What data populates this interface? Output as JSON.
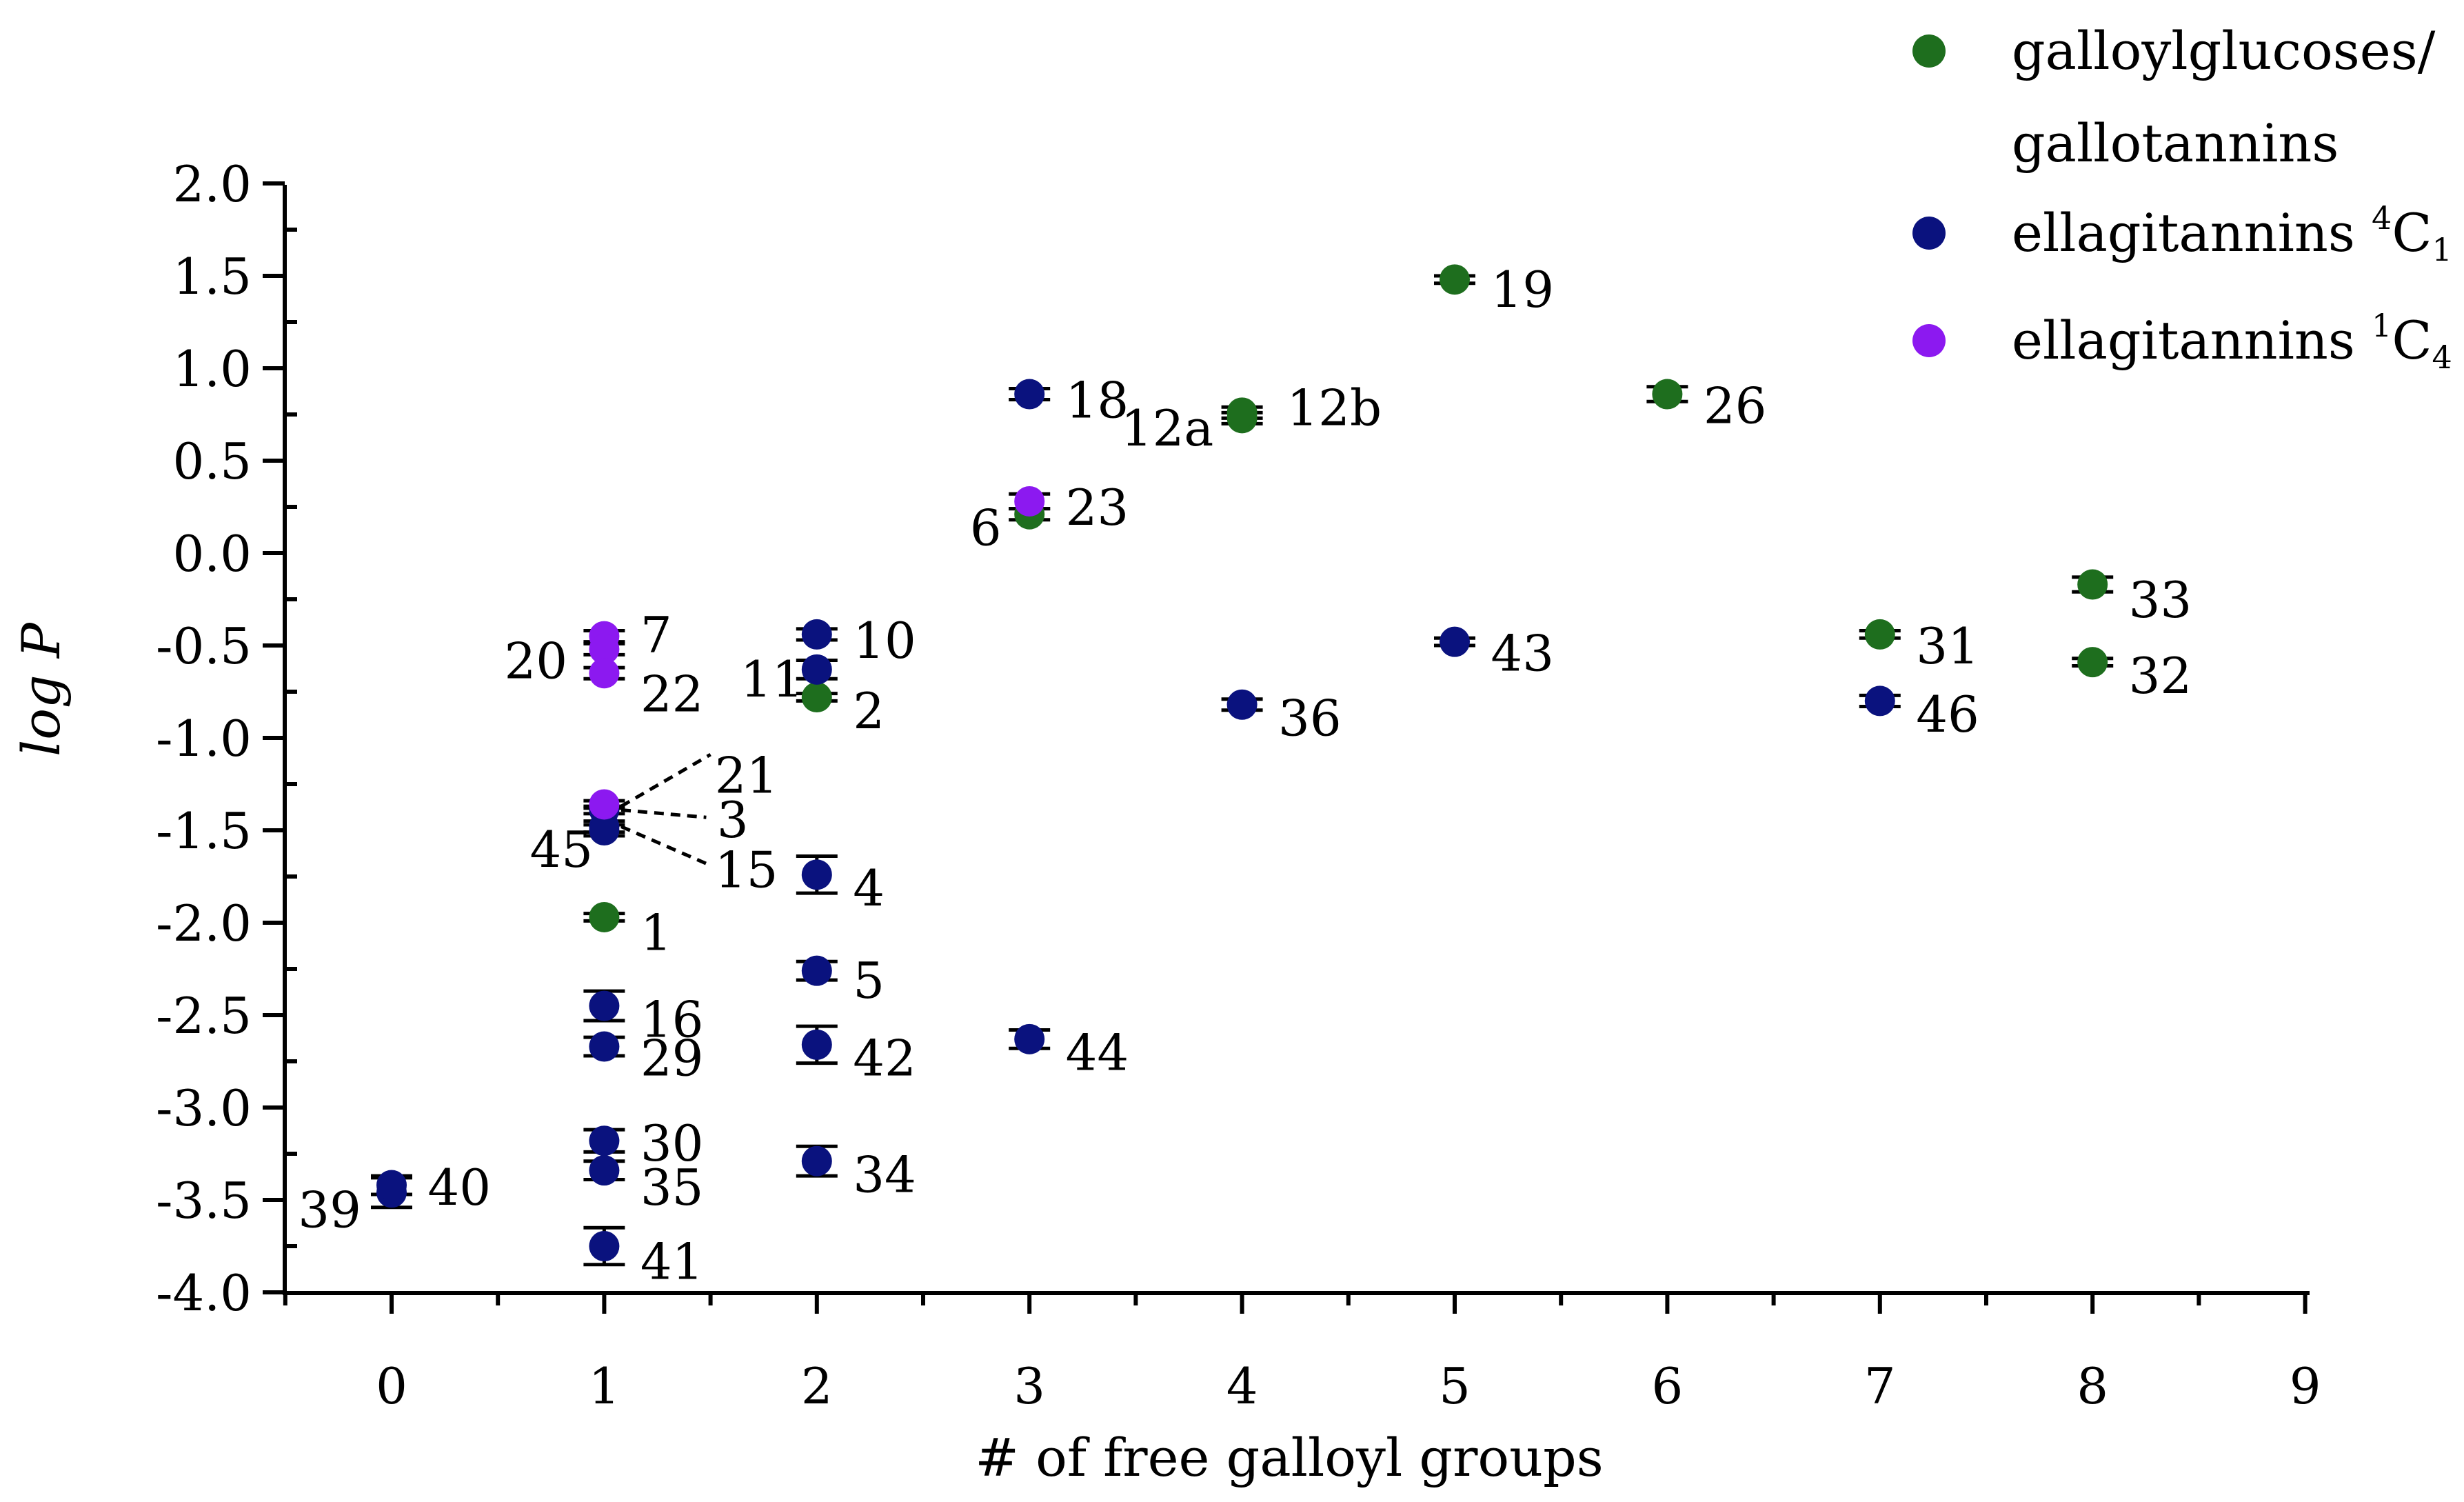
{
  "chart_data": {
    "type": "scatter",
    "title": "",
    "xlabel": "# of free galloyl groups",
    "ylabel": "log P",
    "xlim": [
      -0.5,
      9
    ],
    "ylim": [
      -4.0,
      2.0
    ],
    "x_ticks": [
      "0",
      "1",
      "2",
      "3",
      "4",
      "5",
      "6",
      "7",
      "8",
      "9"
    ],
    "y_ticks": [
      "2.0",
      "1.5",
      "1.0",
      "0.5",
      "0.0",
      "-0.5",
      "-1.0",
      "-1.5",
      "-2.0",
      "-2.5",
      "-3.0",
      "-3.5",
      "-4.0"
    ],
    "legend": {
      "position": "top-right",
      "entries": [
        {
          "series": "galloyl",
          "line1": "galloylglucoses/",
          "line2": "gallotannins"
        },
        {
          "series": "et4c1",
          "text": "ellagitannins ",
          "sup": "4",
          "main": "C",
          "sub": "1"
        },
        {
          "series": "et1c4",
          "text": "ellagitannins ",
          "sup": "1",
          "main": "C",
          "sub": "4"
        }
      ]
    },
    "series": [
      {
        "key": "galloyl",
        "name": "galloylglucoses/gallotannins",
        "color": "#1e6e1e",
        "points": [
          {
            "id": "1",
            "x": 1,
            "y": -1.97,
            "err": 0.02
          },
          {
            "id": "2",
            "x": 2,
            "y": -0.78,
            "err": 0.02
          },
          {
            "id": "6",
            "x": 3,
            "y": 0.21,
            "err": 0.03
          },
          {
            "id": "12a",
            "x": 4,
            "y": 0.73,
            "err": 0.03
          },
          {
            "id": "12b",
            "x": 4,
            "y": 0.76,
            "err": 0.03
          },
          {
            "id": "19",
            "x": 5,
            "y": 1.48,
            "err": 0.02
          },
          {
            "id": "26",
            "x": 6,
            "y": 0.86,
            "err": 0.04
          },
          {
            "id": "31",
            "x": 7,
            "y": -0.44,
            "err": 0.02
          },
          {
            "id": "32",
            "x": 8,
            "y": -0.59,
            "err": 0.02
          },
          {
            "id": "33",
            "x": 8,
            "y": -0.17,
            "err": 0.04
          }
        ]
      },
      {
        "key": "et4c1",
        "name": "ellagitannins 4C1",
        "color": "#0a127e",
        "points": [
          {
            "id": "3",
            "x": 1,
            "y": -1.39,
            "err": 0.02
          },
          {
            "id": "4",
            "x": 2,
            "y": -1.74,
            "err": 0.1
          },
          {
            "id": "5",
            "x": 2,
            "y": -2.26,
            "err": 0.05
          },
          {
            "id": "10",
            "x": 2,
            "y": -0.44,
            "err": 0.03
          },
          {
            "id": "11",
            "x": 2,
            "y": -0.63,
            "err": 0.05
          },
          {
            "id": "15",
            "x": 1,
            "y": -1.48,
            "err": 0.03
          },
          {
            "id": "16",
            "x": 1,
            "y": -2.45,
            "err": 0.08
          },
          {
            "id": "18",
            "x": 3,
            "y": 0.86,
            "err": 0.03
          },
          {
            "id": "29",
            "x": 1,
            "y": -2.67,
            "err": 0.05
          },
          {
            "id": "30",
            "x": 1,
            "y": -3.18,
            "err": 0.06
          },
          {
            "id": "34",
            "x": 2,
            "y": -3.29,
            "err": 0.08
          },
          {
            "id": "35",
            "x": 1,
            "y": -3.34,
            "err": 0.05
          },
          {
            "id": "36",
            "x": 4,
            "y": -0.82,
            "err": 0.03
          },
          {
            "id": "39",
            "x": 0,
            "y": -3.46,
            "err": 0.08
          },
          {
            "id": "40",
            "x": 0,
            "y": -3.42,
            "err": 0.05
          },
          {
            "id": "41",
            "x": 1,
            "y": -3.75,
            "err": 0.1
          },
          {
            "id": "42",
            "x": 2,
            "y": -2.66,
            "err": 0.1
          },
          {
            "id": "43",
            "x": 5,
            "y": -0.48,
            "err": 0.02
          },
          {
            "id": "44",
            "x": 3,
            "y": -2.63,
            "err": 0.05
          },
          {
            "id": "45",
            "x": 1,
            "y": -1.5,
            "err": 0.03
          },
          {
            "id": "46",
            "x": 7,
            "y": -0.8,
            "err": 0.03
          }
        ]
      },
      {
        "key": "et1c4",
        "name": "ellagitannins 1C4",
        "color": "#8c19f0",
        "points": [
          {
            "id": "7",
            "x": 1,
            "y": -0.45,
            "err": 0.03
          },
          {
            "id": "20",
            "x": 1,
            "y": -0.52,
            "err": 0.03
          },
          {
            "id": "21",
            "x": 1,
            "y": -1.36,
            "err": 0.02
          },
          {
            "id": "22",
            "x": 1,
            "y": -0.65,
            "err": 0.03
          },
          {
            "id": "23",
            "x": 3,
            "y": 0.28,
            "err": 0.04
          }
        ]
      }
    ],
    "point_labels": [
      {
        "id": "1",
        "text": "1",
        "x": 1.17,
        "y": -2.05
      },
      {
        "id": "2",
        "text": "2",
        "x": 2.17,
        "y": -0.85
      },
      {
        "id": "3",
        "text": "3",
        "x": 1.53,
        "y": -1.44
      },
      {
        "id": "4",
        "text": "4",
        "x": 2.17,
        "y": -1.81
      },
      {
        "id": "5",
        "text": "5",
        "x": 2.17,
        "y": -2.31
      },
      {
        "id": "6",
        "text": "6",
        "x": 2.72,
        "y": 0.14
      },
      {
        "id": "7",
        "text": "7",
        "x": 1.17,
        "y": -0.44
      },
      {
        "id": "10",
        "text": "10",
        "x": 2.17,
        "y": -0.47
      },
      {
        "id": "11",
        "text": "11",
        "x": 1.64,
        "y": -0.68
      },
      {
        "id": "12a",
        "text": "12a",
        "x": 3.43,
        "y": 0.68
      },
      {
        "id": "12b",
        "text": "12b",
        "x": 4.21,
        "y": 0.79
      },
      {
        "id": "15",
        "text": "15",
        "x": 1.52,
        "y": -1.71
      },
      {
        "id": "16",
        "text": "16",
        "x": 1.17,
        "y": -2.52
      },
      {
        "id": "18",
        "text": "18",
        "x": 3.17,
        "y": 0.83
      },
      {
        "id": "19",
        "text": "19",
        "x": 5.17,
        "y": 1.43
      },
      {
        "id": "20",
        "text": "20",
        "x": 0.53,
        "y": -0.58
      },
      {
        "id": "21",
        "text": "21",
        "x": 1.52,
        "y": -1.2
      },
      {
        "id": "22",
        "text": "22",
        "x": 1.17,
        "y": -0.76
      },
      {
        "id": "23",
        "text": "23",
        "x": 3.17,
        "y": 0.25
      },
      {
        "id": "26",
        "text": "26",
        "x": 6.17,
        "y": 0.8
      },
      {
        "id": "29",
        "text": "29",
        "x": 1.17,
        "y": -2.73
      },
      {
        "id": "30",
        "text": "30",
        "x": 1.17,
        "y": -3.19
      },
      {
        "id": "31",
        "text": "31",
        "x": 7.17,
        "y": -0.5
      },
      {
        "id": "32",
        "text": "32",
        "x": 8.17,
        "y": -0.66
      },
      {
        "id": "33",
        "text": "33",
        "x": 8.17,
        "y": -0.25
      },
      {
        "id": "34",
        "text": "34",
        "x": 2.17,
        "y": -3.36
      },
      {
        "id": "35",
        "text": "35",
        "x": 1.17,
        "y": -3.43
      },
      {
        "id": "36",
        "text": "36",
        "x": 4.17,
        "y": -0.89
      },
      {
        "id": "39",
        "text": "39",
        "x": -0.44,
        "y": -3.55
      },
      {
        "id": "40",
        "text": "40",
        "x": 0.17,
        "y": -3.43
      },
      {
        "id": "41",
        "text": "41",
        "x": 1.17,
        "y": -3.83
      },
      {
        "id": "42",
        "text": "42",
        "x": 2.17,
        "y": -2.73
      },
      {
        "id": "43",
        "text": "43",
        "x": 5.17,
        "y": -0.54
      },
      {
        "id": "44",
        "text": "44",
        "x": 3.17,
        "y": -2.7
      },
      {
        "id": "45",
        "text": "45",
        "x": 0.65,
        "y": -1.6
      },
      {
        "id": "46",
        "text": "46",
        "x": 7.17,
        "y": -0.87
      }
    ],
    "leader_lines": [
      {
        "from": [
          1.08,
          -1.37
        ],
        "to": [
          1.5,
          -1.09
        ]
      },
      {
        "from": [
          1.08,
          -1.39
        ],
        "to": [
          1.48,
          -1.43
        ]
      },
      {
        "from": [
          1.08,
          -1.48
        ],
        "to": [
          1.48,
          -1.68
        ]
      }
    ]
  }
}
